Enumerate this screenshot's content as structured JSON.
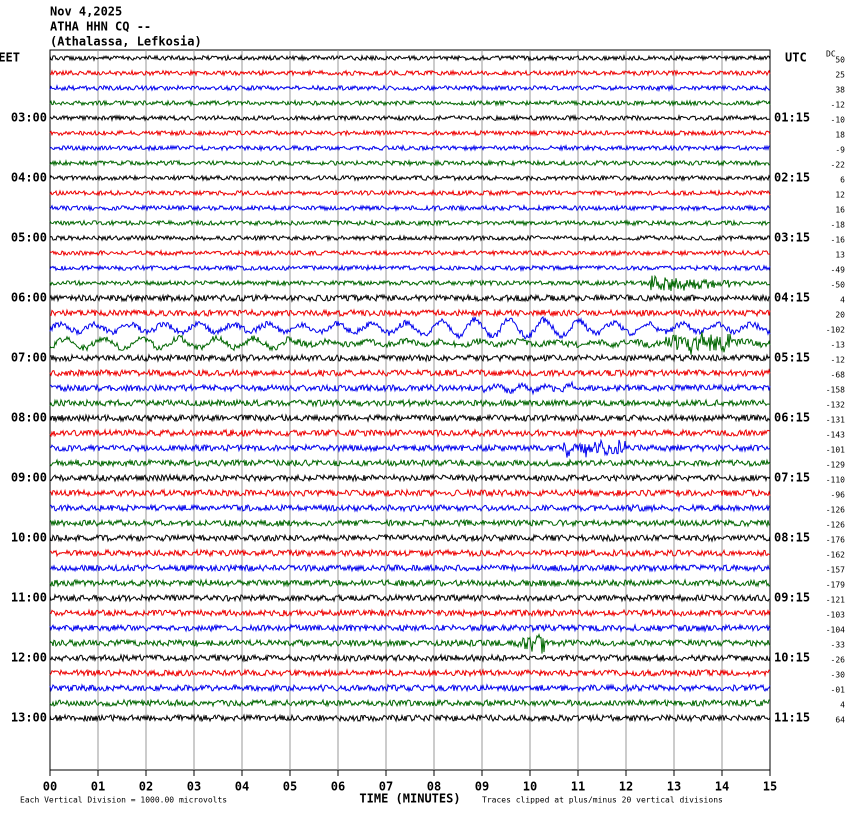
{
  "header": [
    "Nov 4,2025",
    "ATHA HHN CQ --",
    "(Athalassa, Lefkosia)"
  ],
  "left_labels": [
    "EET",
    "03:00",
    "04:00",
    "05:00",
    "06:00",
    "07:00",
    "08:00",
    "09:00",
    "10:00",
    "11:00",
    "12:00",
    "13:00"
  ],
  "right_labels": [
    "UTC",
    "01:15",
    "02:15",
    "03:15",
    "04:15",
    "05:15",
    "06:15",
    "07:15",
    "08:15",
    "09:15",
    "10:15",
    "11:15"
  ],
  "dc_label": "DC",
  "dc_values": [
    "50",
    "25",
    "38",
    "-12",
    "-10",
    "18",
    "-9",
    "-22",
    "6",
    "12",
    "16",
    "-18",
    "-16",
    "13",
    "-49",
    "-50",
    "4",
    "20",
    "-102",
    "-13",
    "-12",
    "-68",
    "-158",
    "-132",
    "-131",
    "-143",
    "-101",
    "-129",
    "-110",
    "-96",
    "-126",
    "-126",
    "-176",
    "-162",
    "-157",
    "-179",
    "-121",
    "-103",
    "-104",
    "-33",
    "-26",
    "-30",
    "-01",
    "4",
    "64"
  ],
  "x_ticks": [
    "00",
    "01",
    "02",
    "03",
    "04",
    "05",
    "06",
    "07",
    "08",
    "09",
    "10",
    "11",
    "12",
    "13",
    "14",
    "15"
  ],
  "x_title": "TIME (MINUTES)",
  "footer_left": "Each Vertical Division = 1000.00 microvolts",
  "footer_right": "Traces clipped at plus/minus 20 vertical divisions"
}
